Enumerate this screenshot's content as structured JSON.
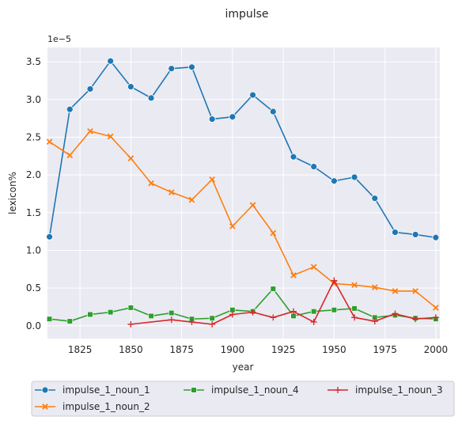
{
  "chart_data": {
    "type": "line",
    "title": "impulse",
    "xlabel": "year",
    "ylabel": "lexicon%",
    "y_offset_label": "1e−5",
    "xlim": [
      1809,
      2002
    ],
    "ylim": [
      -0.17,
      3.69
    ],
    "x_ticks": [
      1825,
      1850,
      1875,
      1900,
      1925,
      1950,
      1975,
      2000
    ],
    "y_ticks": [
      0.0,
      0.5,
      1.0,
      1.5,
      2.0,
      2.5,
      3.0,
      3.5
    ],
    "grid": true,
    "legend_position": "bottom",
    "series": [
      {
        "name": "impulse_1_noun_1",
        "color": "#1f77b4",
        "marker": "circle",
        "x": [
          1810,
          1820,
          1830,
          1840,
          1850,
          1860,
          1870,
          1880,
          1890,
          1900,
          1910,
          1920,
          1930,
          1940,
          1950,
          1960,
          1970,
          1980,
          1990,
          2000
        ],
        "y": [
          1.18,
          2.87,
          3.14,
          3.51,
          3.17,
          3.02,
          3.41,
          3.43,
          2.74,
          2.77,
          3.06,
          2.84,
          2.24,
          2.11,
          1.92,
          1.97,
          1.69,
          1.24,
          1.21,
          1.17
        ]
      },
      {
        "name": "impulse_1_noun_2",
        "color": "#ff7f0e",
        "marker": "x",
        "x": [
          1810,
          1820,
          1830,
          1840,
          1850,
          1860,
          1870,
          1880,
          1890,
          1900,
          1910,
          1920,
          1930,
          1940,
          1950,
          1960,
          1970,
          1980,
          1990,
          2000
        ],
        "y": [
          2.44,
          2.26,
          2.58,
          2.51,
          2.22,
          1.89,
          1.77,
          1.67,
          1.94,
          1.32,
          1.6,
          1.23,
          0.67,
          0.78,
          0.56,
          0.54,
          0.51,
          0.46,
          0.46,
          0.24
        ]
      },
      {
        "name": "impulse_1_noun_4",
        "color": "#2ca02c",
        "marker": "square",
        "x": [
          1810,
          1820,
          1830,
          1840,
          1850,
          1860,
          1870,
          1880,
          1890,
          1900,
          1910,
          1920,
          1930,
          1940,
          1950,
          1960,
          1970,
          1980,
          1990,
          2000
        ],
        "y": [
          0.09,
          0.06,
          0.15,
          0.18,
          0.24,
          0.13,
          0.17,
          0.09,
          0.1,
          0.21,
          0.19,
          0.49,
          0.13,
          0.19,
          0.21,
          0.23,
          0.11,
          0.14,
          0.1,
          0.09
        ]
      },
      {
        "name": "impulse_1_noun_3",
        "color": "#d62728",
        "marker": "plus",
        "x": [
          1850,
          1870,
          1880,
          1890,
          1900,
          1910,
          1920,
          1930,
          1940,
          1950,
          1960,
          1970,
          1980,
          1990,
          2000
        ],
        "y": [
          0.02,
          0.08,
          0.05,
          0.02,
          0.15,
          0.18,
          0.11,
          0.19,
          0.05,
          0.6,
          0.11,
          0.06,
          0.16,
          0.09,
          0.11
        ]
      }
    ]
  }
}
